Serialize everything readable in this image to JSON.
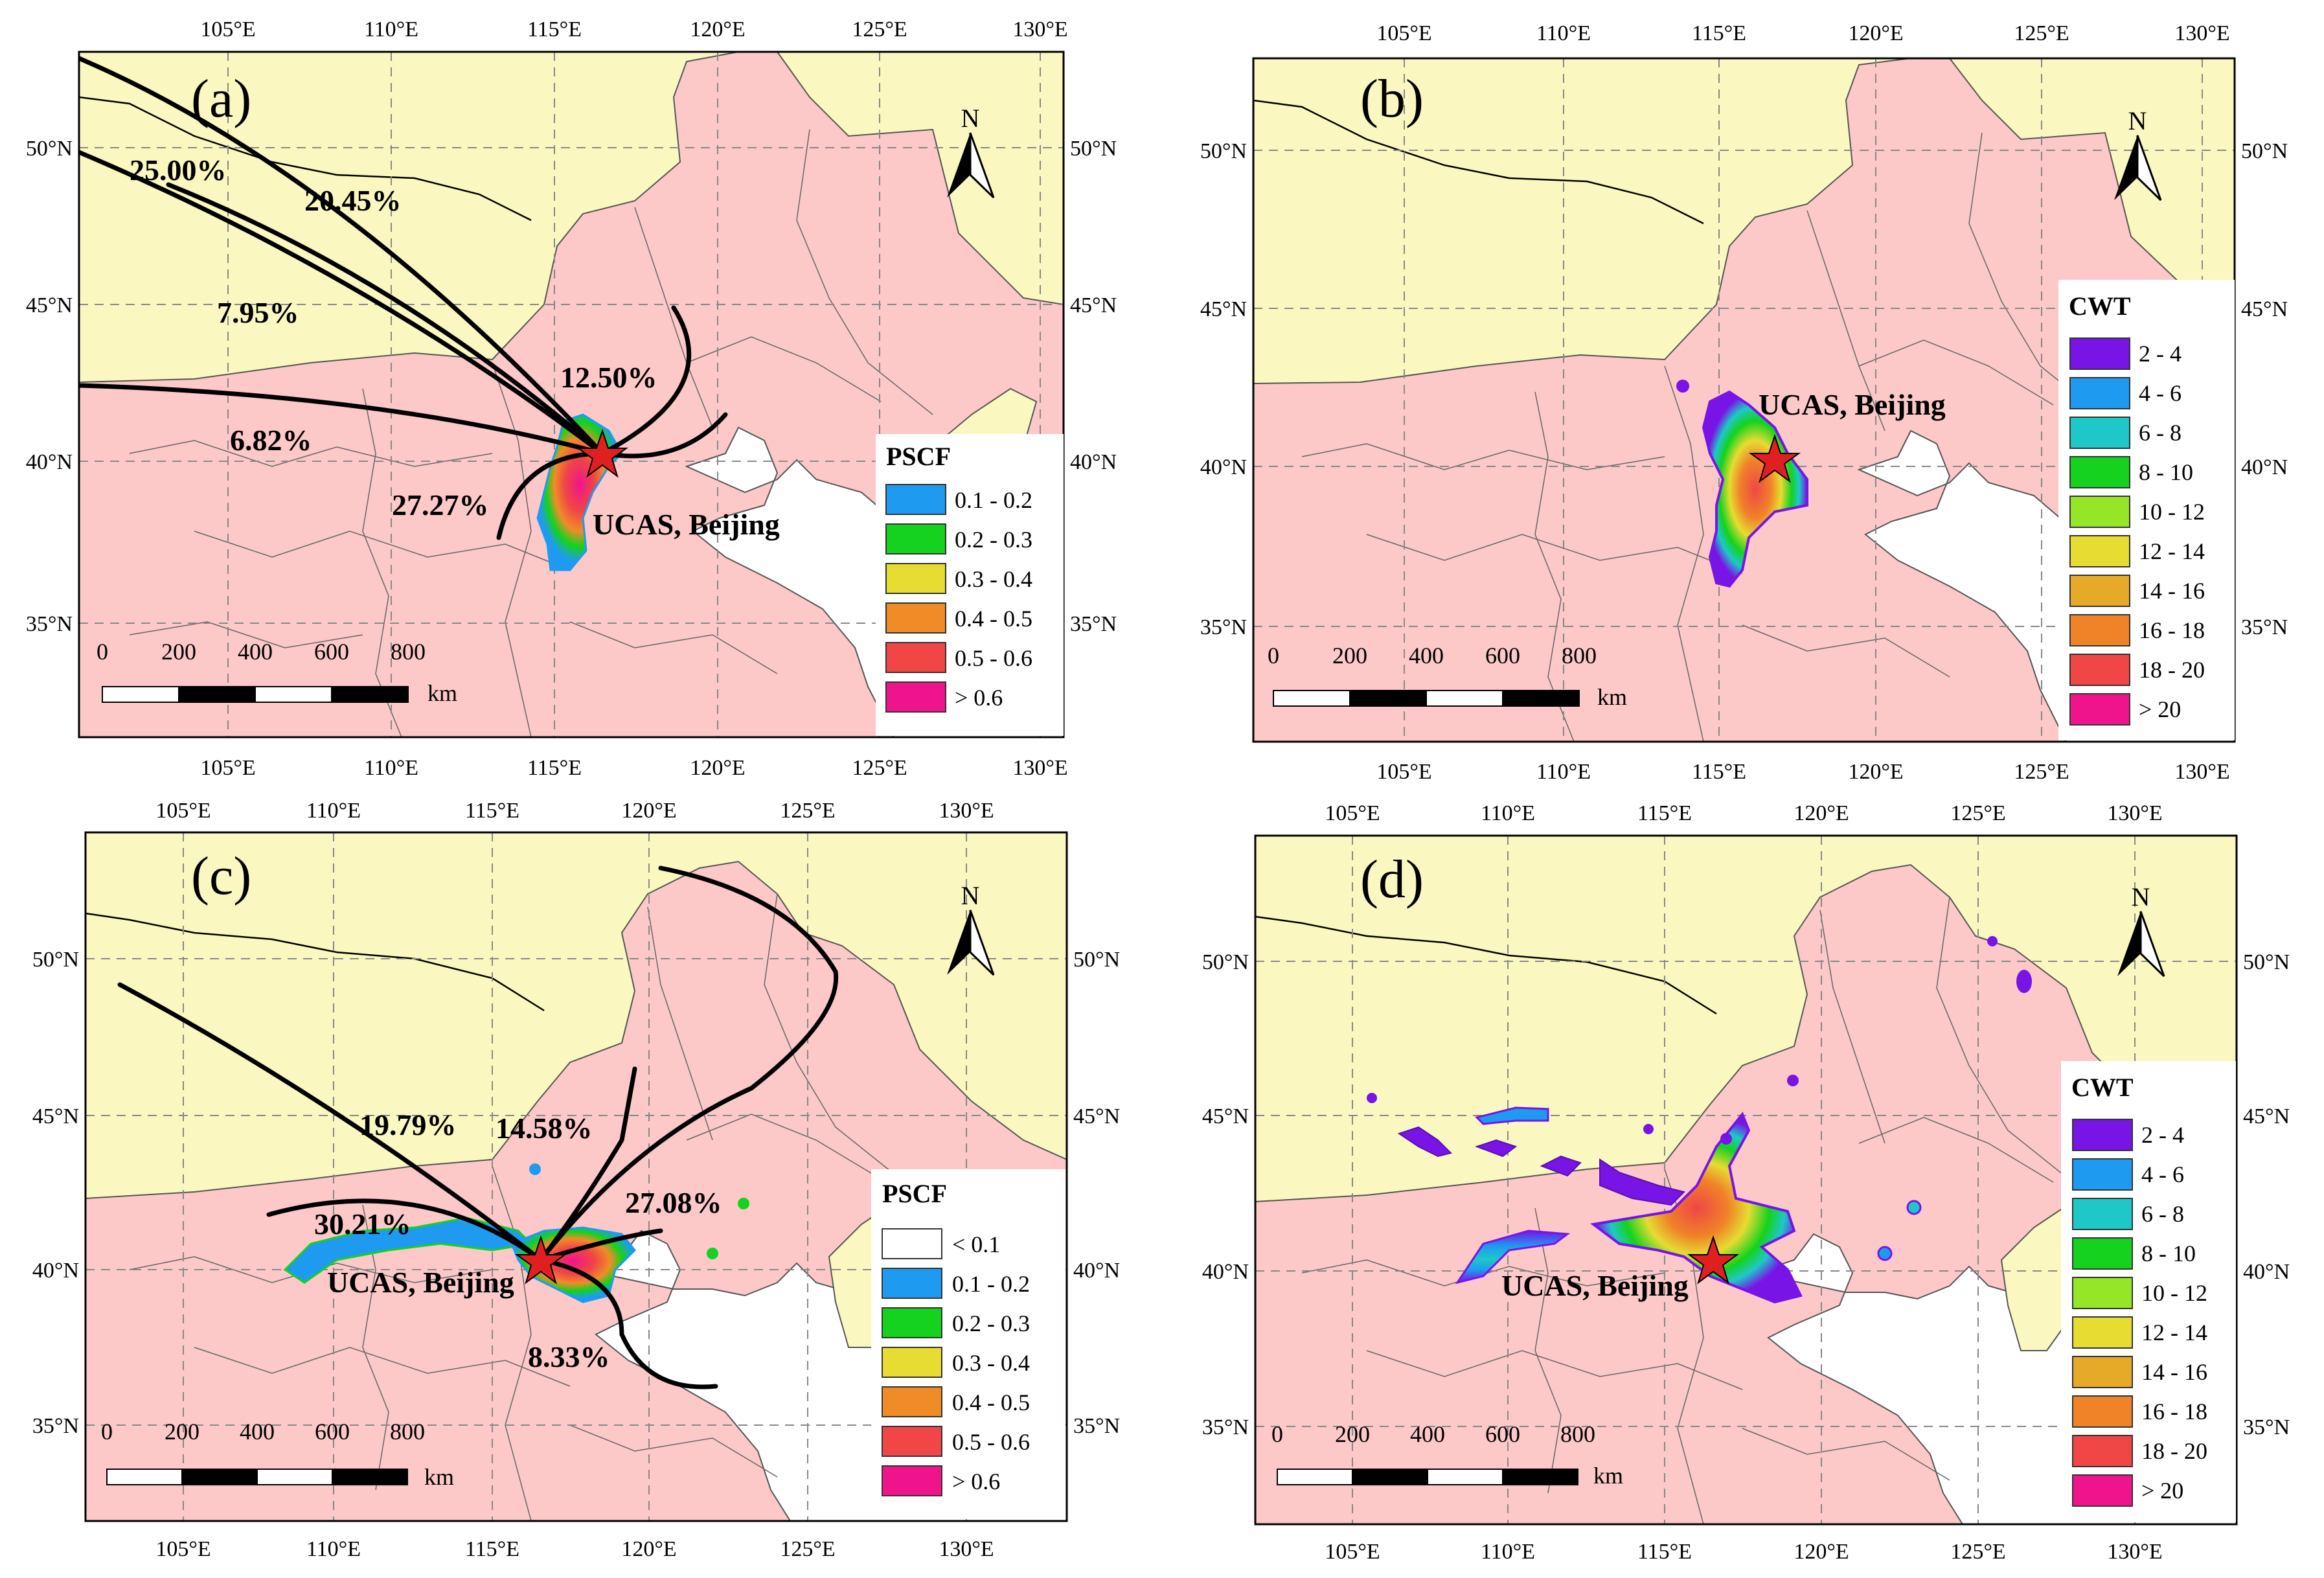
{
  "figure": {
    "panels": [
      {
        "id": "a",
        "label": "(a)",
        "lon_ticks": [
          "105°E",
          "110°E",
          "115°E",
          "120°E",
          "125°E",
          "130°E"
        ],
        "lat_ticks": [
          "50°N",
          "45°N",
          "40°N",
          "35°N"
        ],
        "site_label": "UCAS, Beijing",
        "north_label": "N",
        "scale_labels": [
          "0",
          "200",
          "400",
          "600",
          "800"
        ],
        "scale_unit": "km",
        "legend": {
          "title": "PSCF",
          "items": [
            {
              "label": "0.1 - 0.2",
              "color": "#1e9bf0"
            },
            {
              "label": "0.2 - 0.3",
              "color": "#14d21e"
            },
            {
              "label": "0.3 - 0.4",
              "color": "#e6dc32"
            },
            {
              "label": "0.4 - 0.5",
              "color": "#f08c28"
            },
            {
              "label": "0.5 - 0.6",
              "color": "#f04646"
            },
            {
              "label": "> 0.6",
              "color": "#f0148c"
            }
          ]
        },
        "clusters": [
          "25.00%",
          "20.45%",
          "7.95%",
          "12.50%",
          "6.82%",
          "27.27%"
        ]
      },
      {
        "id": "b",
        "label": "(b)",
        "lon_ticks": [
          "105°E",
          "110°E",
          "115°E",
          "120°E",
          "125°E",
          "130°E"
        ],
        "lat_ticks": [
          "50°N",
          "45°N",
          "40°N",
          "35°N"
        ],
        "site_label": "UCAS, Beijing",
        "north_label": "N",
        "scale_labels": [
          "0",
          "200",
          "400",
          "600",
          "800"
        ],
        "scale_unit": "km",
        "legend": {
          "title": "CWT",
          "items": [
            {
              "label": "2 - 4",
              "color": "#7814e6"
            },
            {
              "label": "4 - 6",
              "color": "#1e9bf0"
            },
            {
              "label": "6 - 8",
              "color": "#1ec8c8"
            },
            {
              "label": "8 - 10",
              "color": "#14d21e"
            },
            {
              "label": "10 - 12",
              "color": "#96e628"
            },
            {
              "label": "12 - 14",
              "color": "#e6dc32"
            },
            {
              "label": "14 - 16",
              "color": "#e6aa28"
            },
            {
              "label": "16 - 18",
              "color": "#f08228"
            },
            {
              "label": "18 - 20",
              "color": "#f04646"
            },
            {
              "label": "> 20",
              "color": "#f0148c"
            }
          ]
        },
        "clusters": []
      },
      {
        "id": "c",
        "label": "(c)",
        "lon_ticks": [
          "105°E",
          "110°E",
          "115°E",
          "120°E",
          "125°E",
          "130°E"
        ],
        "lat_ticks": [
          "50°N",
          "45°N",
          "40°N",
          "35°N"
        ],
        "site_label": "UCAS, Beijing",
        "north_label": "N",
        "scale_labels": [
          "0",
          "200",
          "400",
          "600",
          "800"
        ],
        "scale_unit": "km",
        "legend": {
          "title": "PSCF",
          "items": [
            {
              "label": "< 0.1",
              "color": "#ffffff"
            },
            {
              "label": "0.1 - 0.2",
              "color": "#1e9bf0"
            },
            {
              "label": "0.2 - 0.3",
              "color": "#14d21e"
            },
            {
              "label": "0.3 - 0.4",
              "color": "#e6dc32"
            },
            {
              "label": "0.4 - 0.5",
              "color": "#f08c28"
            },
            {
              "label": "0.5 - 0.6",
              "color": "#f04646"
            },
            {
              "label": "> 0.6",
              "color": "#f0148c"
            }
          ]
        },
        "clusters": [
          "19.79%",
          "14.58%",
          "30.21%",
          "27.08%",
          "8.33%"
        ]
      },
      {
        "id": "d",
        "label": "(d)",
        "lon_ticks": [
          "105°E",
          "110°E",
          "115°E",
          "120°E",
          "125°E",
          "130°E"
        ],
        "lat_ticks": [
          "50°N",
          "45°N",
          "40°N",
          "35°N"
        ],
        "site_label": "UCAS, Beijing",
        "north_label": "N",
        "scale_labels": [
          "0",
          "200",
          "400",
          "600",
          "800"
        ],
        "scale_unit": "km",
        "legend": {
          "title": "CWT",
          "items": [
            {
              "label": "2 - 4",
              "color": "#7814e6"
            },
            {
              "label": "4 - 6",
              "color": "#1e9bf0"
            },
            {
              "label": "6 - 8",
              "color": "#1ec8c8"
            },
            {
              "label": "8 - 10",
              "color": "#14d21e"
            },
            {
              "label": "10 - 12",
              "color": "#96e628"
            },
            {
              "label": "12 - 14",
              "color": "#e6dc32"
            },
            {
              "label": "14 - 16",
              "color": "#e6aa28"
            },
            {
              "label": "16 - 18",
              "color": "#f08228"
            },
            {
              "label": "18 - 20",
              "color": "#f04646"
            },
            {
              "label": "> 20",
              "color": "#f0148c"
            }
          ]
        },
        "clusters": []
      }
    ],
    "colors": {
      "china_fill": "#fcc8c8",
      "neighbor_fill": "#faf8c0",
      "sea_fill": "#ffffff",
      "trajectory": "#000000",
      "site_star": "#e02020"
    }
  }
}
